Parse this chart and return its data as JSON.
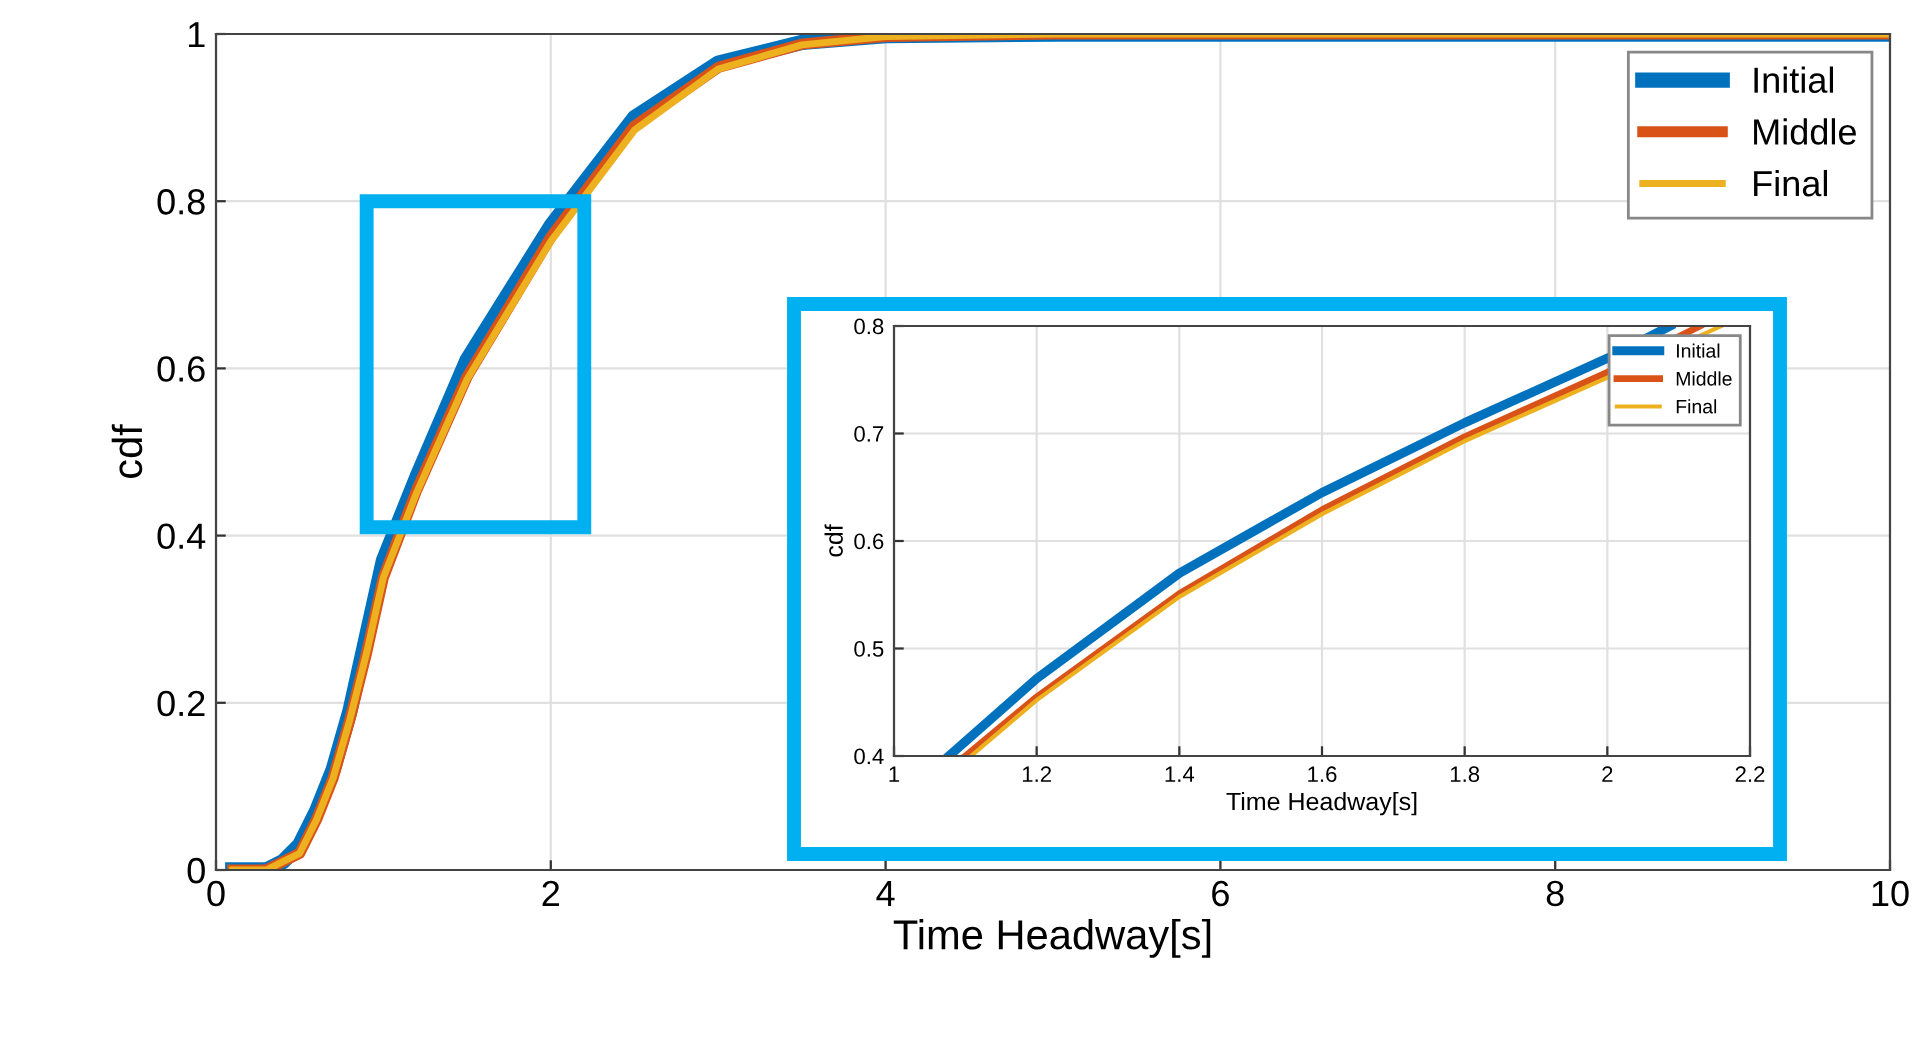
{
  "chart_data": [
    {
      "type": "line",
      "xlabel": "Time Headway[s]",
      "ylabel": "cdf",
      "xlim": [
        0,
        10
      ],
      "ylim": [
        0,
        1
      ],
      "xticks": [
        0,
        2,
        4,
        6,
        8,
        10
      ],
      "yticks": [
        0,
        0.2,
        0.4,
        0.6,
        0.8,
        1
      ],
      "grid": true,
      "legend": "top right",
      "line_style": "solid",
      "series": [
        {
          "name": "Initial",
          "color": "#0072bd",
          "x": [
            0.1,
            0.3,
            0.4,
            0.5,
            0.6,
            0.7,
            0.8,
            0.9,
            1.0,
            1.2,
            1.5,
            2.0,
            2.5,
            3.0,
            3.5,
            4.0,
            5.0,
            10
          ],
          "values": [
            0,
            0,
            0.01,
            0.03,
            0.07,
            0.12,
            0.19,
            0.28,
            0.37,
            0.47,
            0.61,
            0.77,
            0.9,
            0.965,
            0.99,
            0.998,
            1,
            1
          ]
        },
        {
          "name": "Middle",
          "color": "#d95319",
          "x": [
            0.1,
            0.3,
            0.4,
            0.5,
            0.6,
            0.7,
            0.8,
            0.9,
            1.0,
            1.2,
            1.5,
            2.0,
            2.5,
            3.0,
            3.5,
            4.0,
            5.0,
            10
          ],
          "values": [
            0,
            0,
            0.01,
            0.02,
            0.06,
            0.11,
            0.18,
            0.26,
            0.35,
            0.455,
            0.59,
            0.757,
            0.89,
            0.96,
            0.988,
            0.997,
            1,
            1
          ]
        },
        {
          "name": "Final",
          "color": "#edb120",
          "x": [
            0.1,
            0.3,
            0.4,
            0.5,
            0.6,
            0.7,
            0.8,
            0.9,
            1.0,
            1.2,
            1.5,
            2.0,
            2.5,
            3.0,
            3.5,
            4.0,
            5.0,
            10
          ],
          "values": [
            0,
            0,
            0.01,
            0.02,
            0.06,
            0.11,
            0.18,
            0.26,
            0.35,
            0.452,
            0.587,
            0.752,
            0.885,
            0.958,
            0.987,
            0.997,
            1,
            1
          ]
        }
      ]
    },
    {
      "type": "line",
      "xlabel": "Time Headway[s]",
      "ylabel": "cdf",
      "xlim": [
        1,
        2.2
      ],
      "ylim": [
        0.4,
        0.8
      ],
      "xticks": [
        1,
        1.2,
        1.4,
        1.6,
        1.8,
        2,
        2.2
      ],
      "yticks": [
        0.4,
        0.5,
        0.6,
        0.7,
        0.8
      ],
      "grid": true,
      "legend": "top right",
      "line_style": "solid",
      "series": [
        {
          "name": "Initial",
          "color": "#0072bd",
          "x": [
            1.077,
            1.2,
            1.4,
            1.6,
            1.8,
            2.0,
            2.088
          ],
          "values": [
            0.4,
            0.472,
            0.57,
            0.645,
            0.71,
            0.77,
            0.8
          ]
        },
        {
          "name": "Middle",
          "color": "#d95319",
          "x": [
            1.1,
            1.2,
            1.4,
            1.6,
            1.8,
            2.0,
            2.13
          ],
          "values": [
            0.4,
            0.455,
            0.551,
            0.629,
            0.697,
            0.757,
            0.8
          ]
        },
        {
          "name": "Final",
          "color": "#edb120",
          "x": [
            1.108,
            1.2,
            1.4,
            1.6,
            1.8,
            2.0,
            2.16
          ],
          "values": [
            0.4,
            0.452,
            0.548,
            0.625,
            0.693,
            0.752,
            0.8
          ]
        }
      ]
    }
  ]
}
